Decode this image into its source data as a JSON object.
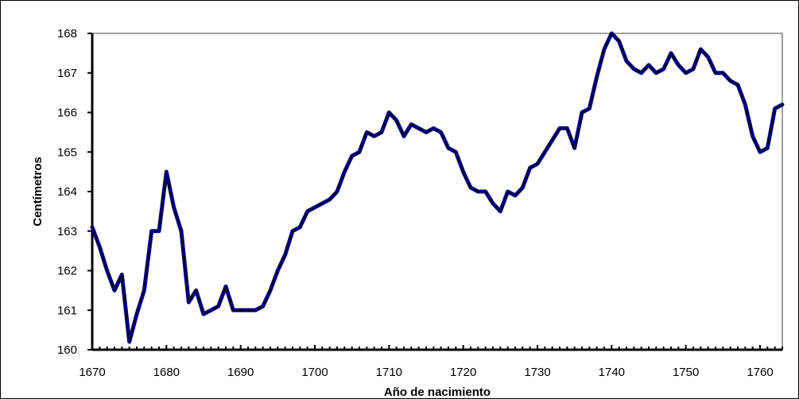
{
  "chart_data": {
    "type": "line",
    "title": "",
    "xlabel": "Año de nacimiento",
    "ylabel": "Centímetros",
    "xlim": [
      1670,
      1763
    ],
    "ylim": [
      160,
      168
    ],
    "x_ticks": [
      "1670",
      "1680",
      "1690",
      "1700",
      "1710",
      "1720",
      "1730",
      "1740",
      "1750",
      "1760"
    ],
    "y_ticks": [
      "160",
      "161",
      "162",
      "163",
      "164",
      "165",
      "166",
      "167",
      "168"
    ],
    "grid": false,
    "legend": "none",
    "line_color": "#000080",
    "dash_color": "#000000",
    "series": [
      {
        "x": [
          1670,
          1671,
          1672,
          1673,
          1674,
          1675,
          1676,
          1677,
          1678,
          1679,
          1680,
          1681,
          1682,
          1683,
          1684,
          1685,
          1686,
          1687,
          1688,
          1689,
          1690,
          1691,
          1692,
          1693,
          1694,
          1695,
          1696,
          1697,
          1698,
          1699,
          1700,
          1701,
          1702,
          1703,
          1704,
          1705,
          1706,
          1707,
          1708,
          1709,
          1710,
          1711,
          1712,
          1713,
          1714,
          1715,
          1716,
          1717,
          1718,
          1719,
          1720,
          1721,
          1722,
          1723,
          1724,
          1725,
          1726,
          1727,
          1728,
          1729,
          1730,
          1731,
          1732,
          1733,
          1734,
          1735,
          1736,
          1737,
          1738,
          1739,
          1740,
          1741,
          1742,
          1743,
          1744,
          1745,
          1746,
          1747,
          1748,
          1749,
          1750,
          1751,
          1752,
          1753,
          1754,
          1755,
          1756,
          1757,
          1758,
          1759,
          1760,
          1761,
          1762,
          1763
        ],
        "values": [
          163.1,
          162.6,
          162.0,
          161.5,
          161.9,
          160.2,
          160.9,
          161.5,
          163.0,
          163.0,
          164.5,
          163.6,
          163.0,
          161.2,
          161.5,
          160.9,
          161.0,
          161.1,
          161.6,
          161.0,
          161.0,
          161.0,
          161.0,
          161.1,
          161.5,
          162.0,
          162.4,
          163.0,
          163.1,
          163.5,
          163.6,
          163.7,
          163.8,
          164.0,
          164.5,
          164.9,
          165.0,
          165.5,
          165.4,
          165.5,
          166.0,
          165.8,
          165.4,
          165.7,
          165.6,
          165.5,
          165.6,
          165.5,
          165.1,
          165.0,
          164.5,
          164.1,
          164.0,
          164.0,
          163.7,
          163.5,
          164.0,
          163.9,
          164.1,
          164.6,
          164.7,
          165.0,
          165.3,
          165.6,
          165.6,
          165.1,
          166.0,
          166.1,
          166.9,
          167.6,
          168.0,
          167.8,
          167.3,
          167.1,
          167.0,
          167.2,
          167.0,
          167.1,
          167.5,
          167.2,
          167.0,
          167.1,
          167.6,
          167.4,
          167.0,
          167.0,
          166.8,
          166.7,
          166.2,
          165.4,
          165.0,
          165.1,
          166.1,
          166.2
        ]
      }
    ]
  }
}
